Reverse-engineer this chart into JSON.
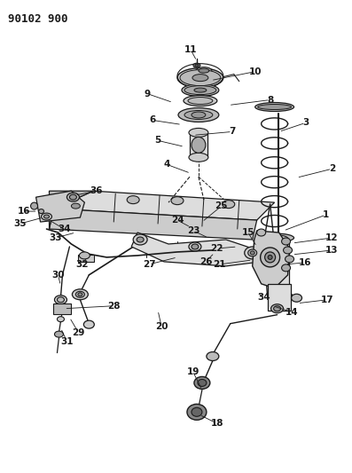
{
  "title": "90102 900",
  "bg_color": "#ffffff",
  "line_color": "#1a1a1a",
  "label_color": "#000000",
  "title_fontsize": 9,
  "label_fontsize": 7.5,
  "figsize": [
    3.97,
    5.33
  ],
  "dpi": 100
}
